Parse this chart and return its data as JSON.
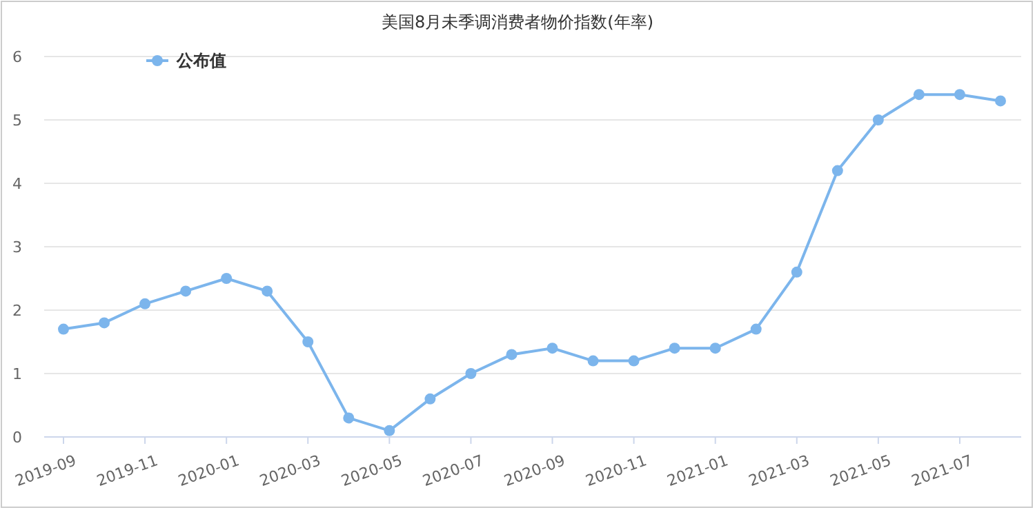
{
  "chart_data": {
    "type": "line",
    "title": "美国8月未季调消费者物价指数(年率)",
    "categories": [
      "2019-09",
      null,
      "2019-11",
      null,
      "2020-01",
      null,
      "2020-03",
      null,
      "2020-05",
      null,
      "2020-07",
      null,
      "2020-09",
      null,
      "2020-11",
      null,
      "2021-01",
      null,
      "2021-03",
      null,
      "2021-05",
      null,
      "2021-07",
      null
    ],
    "series": [
      {
        "name": "公布值",
        "color": "#7cb5ec",
        "values": [
          1.7,
          1.8,
          2.1,
          2.3,
          2.5,
          2.3,
          1.5,
          0.3,
          0.1,
          0.6,
          1.0,
          1.3,
          1.4,
          1.2,
          1.2,
          1.4,
          1.4,
          1.7,
          2.6,
          4.2,
          5.0,
          5.4,
          5.4,
          5.3
        ]
      }
    ],
    "ylim": [
      0,
      6
    ],
    "yticks": [
      0,
      1,
      2,
      3,
      4,
      5,
      6
    ],
    "grid": "y",
    "legend": "top left",
    "marker": "circle",
    "line_style": "solid"
  }
}
